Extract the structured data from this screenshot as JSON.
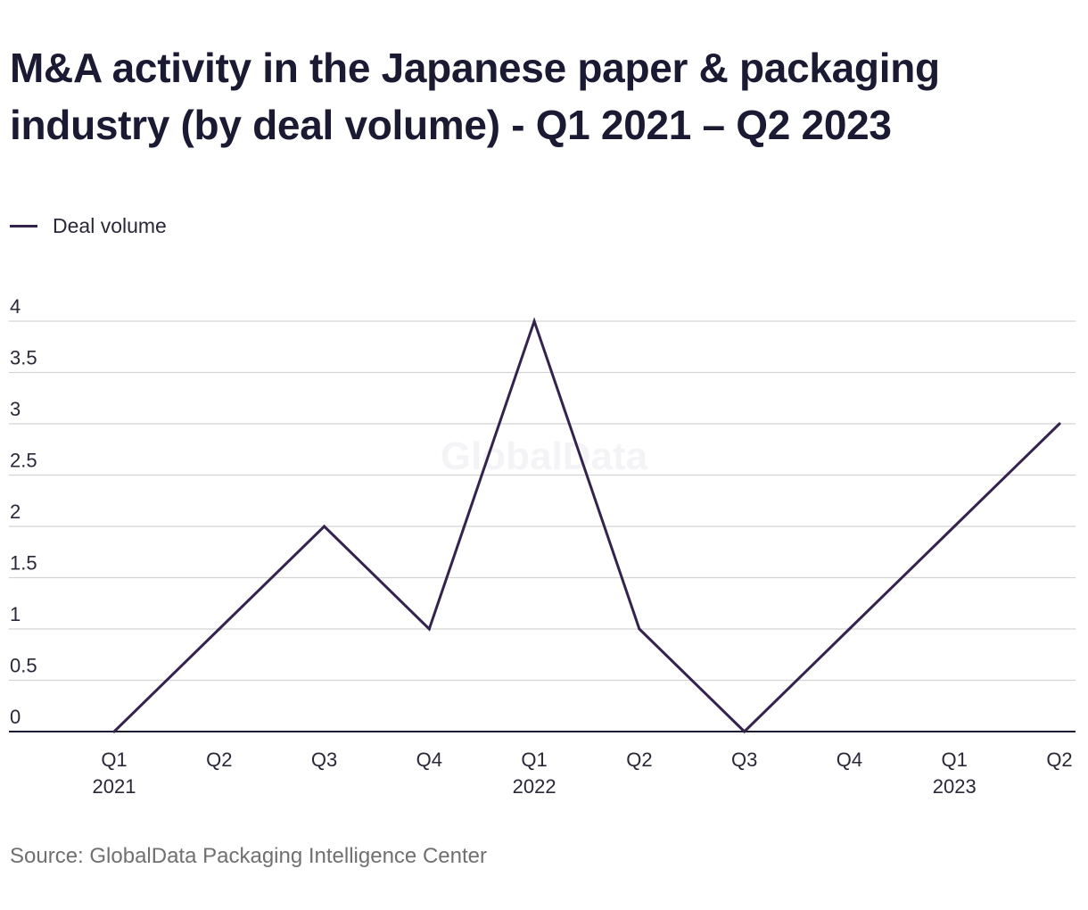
{
  "chart_data": {
    "type": "line",
    "title": "M&A activity in the Japanese paper & packaging industry (by deal volume) - Q1 2021 – Q2 2023",
    "categories": [
      [
        "Q1",
        "2021"
      ],
      [
        "Q2",
        ""
      ],
      [
        "Q3",
        ""
      ],
      [
        "Q4",
        ""
      ],
      [
        "Q1",
        "2022"
      ],
      [
        "Q2",
        ""
      ],
      [
        "Q3",
        ""
      ],
      [
        "Q4",
        ""
      ],
      [
        "Q1",
        "2023"
      ],
      [
        "Q2",
        ""
      ]
    ],
    "series": [
      {
        "name": "Deal volume",
        "values": [
          0,
          1,
          2,
          1,
          4,
          1,
          0,
          1,
          2,
          3
        ],
        "color": "#35234f"
      }
    ],
    "y_ticks": [
      "0",
      "0.5",
      "1",
      "1.5",
      "2",
      "2.5",
      "3",
      "3.5",
      "4"
    ],
    "ylim": [
      0,
      4
    ],
    "xlabel": "",
    "ylabel": "",
    "grid": true,
    "legend_position": "top-left",
    "watermark": "GlobalData"
  },
  "source": "Source: GlobalData Packaging Intelligence Center"
}
